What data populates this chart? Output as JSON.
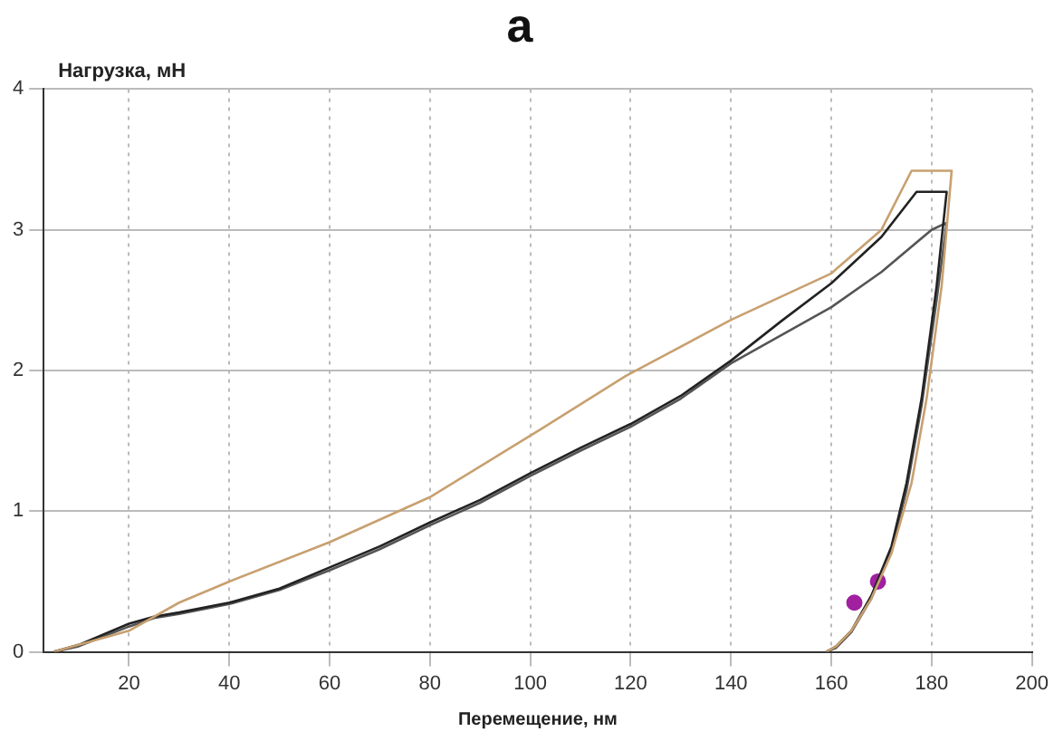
{
  "chart_data": {
    "type": "line",
    "title": "а",
    "xlabel": "Перемещение, нм",
    "ylabel": "Нагрузка, мН",
    "xlim": [
      3,
      200
    ],
    "xticks": [
      20,
      40,
      60,
      80,
      100,
      120,
      140,
      160,
      180,
      200
    ],
    "ylim": [
      0,
      4
    ],
    "yticks": [
      0,
      1,
      2,
      3,
      4
    ],
    "grid": true,
    "legend": false,
    "marker": "none",
    "line_style": "solid",
    "series": [
      {
        "type": "line",
        "color": "#c8a070",
        "x": [
          5,
          10,
          20,
          30,
          40,
          60,
          80,
          102,
          119,
          140,
          160,
          170,
          176,
          184,
          182,
          179,
          176,
          172,
          168,
          164,
          161,
          159
        ],
        "values": [
          0,
          0.05,
          0.15,
          0.35,
          0.5,
          0.78,
          1.1,
          1.58,
          1.96,
          2.36,
          2.69,
          3.0,
          3.42,
          3.42,
          2.6,
          1.8,
          1.2,
          0.7,
          0.38,
          0.15,
          0.04,
          0
        ]
      },
      {
        "type": "line",
        "color": "#222222",
        "x": [
          5,
          10,
          20,
          25,
          30,
          40,
          50,
          60,
          70,
          80,
          90,
          100,
          110,
          120,
          130,
          140,
          150,
          160,
          170,
          177,
          183,
          181,
          178,
          175,
          172,
          168,
          164,
          161,
          159
        ],
        "values": [
          0,
          0.05,
          0.2,
          0.25,
          0.28,
          0.35,
          0.45,
          0.6,
          0.75,
          0.92,
          1.08,
          1.27,
          1.45,
          1.62,
          1.82,
          2.07,
          2.35,
          2.62,
          2.95,
          3.27,
          3.27,
          2.6,
          1.8,
          1.2,
          0.75,
          0.4,
          0.15,
          0.04,
          0
        ]
      },
      {
        "type": "line",
        "color": "#555555",
        "x": [
          5,
          10,
          20,
          25,
          30,
          40,
          50,
          60,
          70,
          80,
          90,
          100,
          110,
          120,
          130,
          140,
          150,
          160,
          170,
          180,
          183,
          181,
          178,
          175,
          172,
          168,
          164,
          161,
          159
        ],
        "values": [
          0,
          0.04,
          0.18,
          0.24,
          0.27,
          0.34,
          0.44,
          0.58,
          0.73,
          0.9,
          1.06,
          1.25,
          1.43,
          1.6,
          1.8,
          2.05,
          2.25,
          2.45,
          2.7,
          3.0,
          3.05,
          2.5,
          1.75,
          1.15,
          0.72,
          0.38,
          0.14,
          0.03,
          0
        ]
      },
      {
        "type": "scatter",
        "color": "#a020a0",
        "marker": "circle",
        "x": [
          164.6,
          169.3
        ],
        "values": [
          0.35,
          0.5
        ]
      }
    ]
  }
}
